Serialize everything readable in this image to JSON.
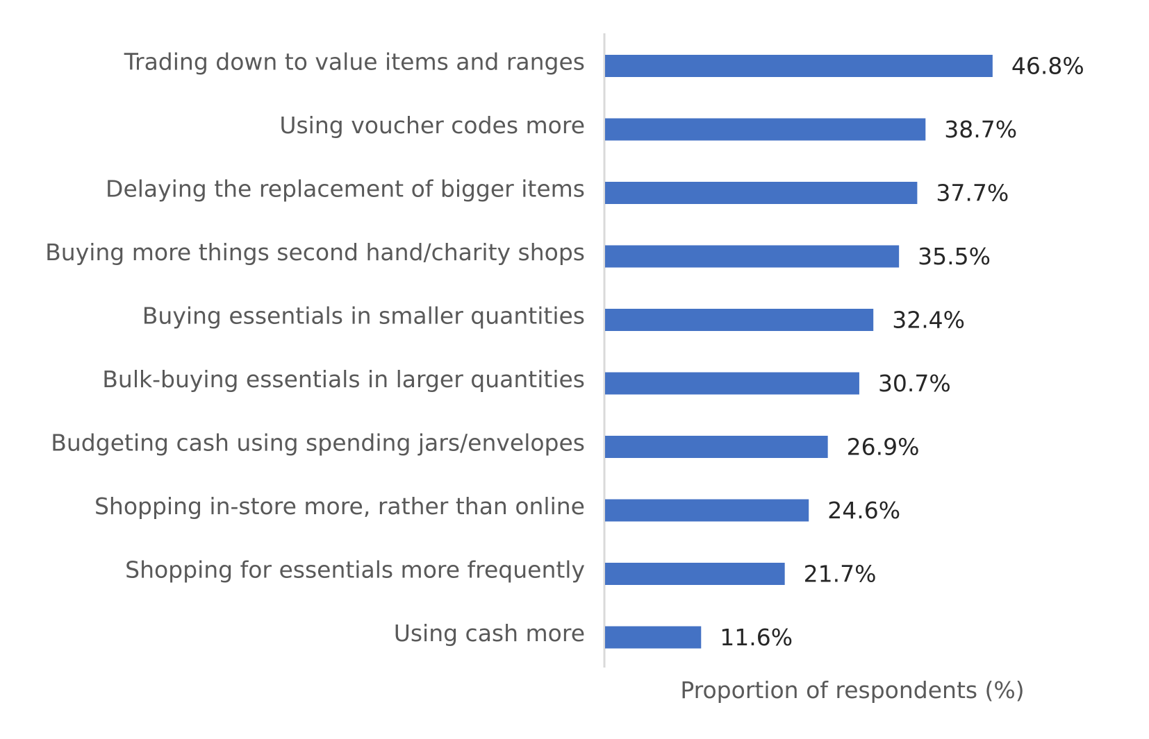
{
  "chart_data": {
    "type": "bar",
    "orientation": "horizontal",
    "categories": [
      "Trading down to value items and ranges",
      "Using voucher codes more",
      "Delaying the replacement of bigger items",
      "Buying more things second hand/charity shops",
      "Buying essentials in smaller quantities",
      "Bulk-buying essentials in larger quantities",
      "Budgeting cash using spending jars/envelopes",
      "Shopping in-store more, rather than online",
      "Shopping for essentials more frequently",
      "Using cash more"
    ],
    "values": [
      46.8,
      38.7,
      37.7,
      35.5,
      32.4,
      30.7,
      26.9,
      24.6,
      21.7,
      11.6
    ],
    "value_labels": [
      "46.8%",
      "38.7%",
      "37.7%",
      "35.5%",
      "32.4%",
      "30.7%",
      "26.9%",
      "24.6%",
      "21.7%",
      "11.6%"
    ],
    "title": "",
    "xlabel": "Proportion of respondents (%)",
    "ylabel": "",
    "xlim": [
      0,
      60
    ],
    "grid": false,
    "legend": "none",
    "colors": {
      "bar": "#4472C4",
      "axis": "#D9D9D9",
      "category_text": "#595959",
      "value_text": "#262626"
    }
  }
}
